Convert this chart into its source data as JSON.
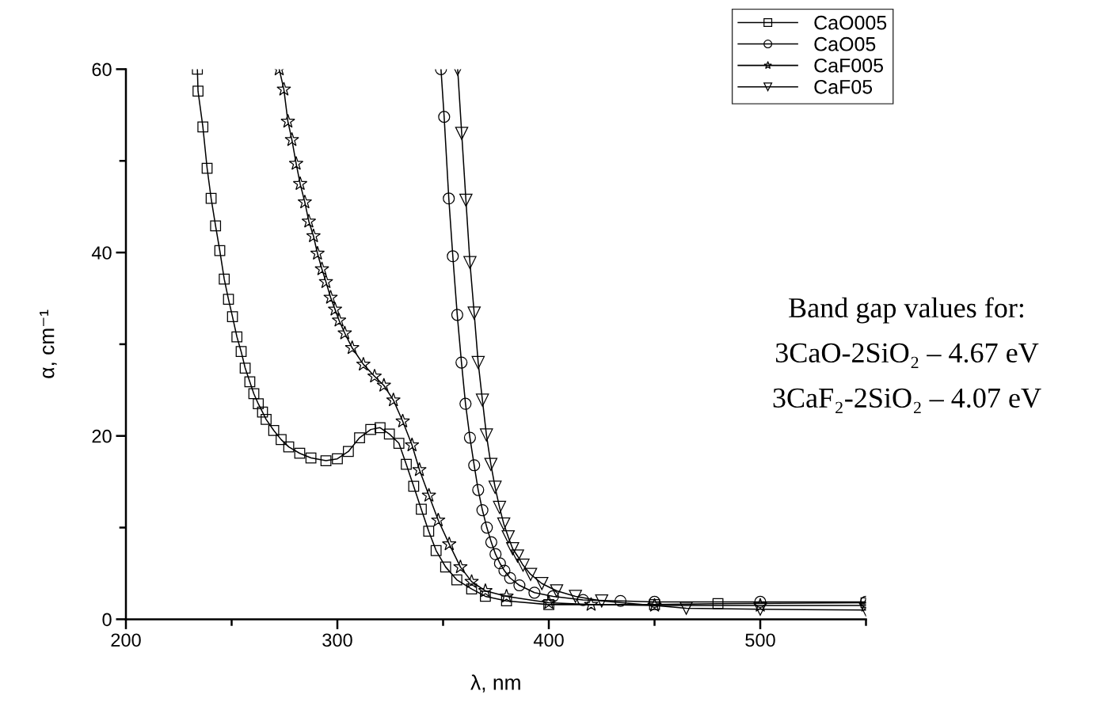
{
  "chart_data": {
    "type": "line",
    "xlabel": "λ, nm",
    "ylabel": "α, cm⁻¹",
    "xlim": [
      200,
      550
    ],
    "xticks": [
      200,
      {
        "value": 250,
        "label": null
      },
      300,
      {
        "value": 350,
        "label": null
      },
      400,
      {
        "value": 450,
        "label": null
      },
      500,
      {
        "value": 550,
        "label": null
      }
    ],
    "ylim": [
      0,
      60
    ],
    "yticks": [
      0,
      {
        "value": 10,
        "label": null
      },
      20,
      {
        "value": 30,
        "label": null
      },
      40,
      {
        "value": 50,
        "label": null
      },
      60
    ],
    "grid": false,
    "legend": "top right",
    "line_style": "solid",
    "series": [
      {
        "name": "CaO005",
        "color": "#000000",
        "marker": "square",
        "x": [
          233.8,
          234.1,
          236.4,
          238.4,
          240.3,
          242.4,
          244.4,
          246.5,
          248.5,
          250.4,
          252.5,
          254.5,
          256.4,
          258.6,
          260.5,
          262.6,
          264.6,
          266.3,
          269.9,
          273.4,
          277,
          282.2,
          287.5,
          294.6,
          300,
          305.2,
          310.5,
          315.8,
          320.2,
          324.6,
          329.1,
          332.6,
          336.1,
          339.7,
          343.2,
          346.7,
          351.2,
          356.5,
          363.5,
          370,
          380,
          400,
          450,
          480,
          550
        ],
        "values": [
          60.0,
          57.6,
          53.7,
          49.2,
          45.9,
          42.9,
          40.2,
          37.1,
          34.9,
          33.0,
          30.8,
          29.2,
          27.4,
          25.9,
          24.6,
          23.5,
          22.6,
          21.8,
          20.6,
          19.6,
          18.8,
          18.1,
          17.6,
          17.3,
          17.5,
          18.3,
          19.8,
          20.7,
          20.9,
          20.2,
          19.2,
          16.9,
          14.5,
          12.0,
          9.6,
          7.5,
          5.7,
          4.3,
          3.3,
          2.5,
          2.0,
          1.6,
          1.6,
          1.7,
          1.8
        ]
      },
      {
        "name": "CaO05",
        "color": "#000000",
        "marker": "circle",
        "x": [
          349.0,
          350.5,
          352.7,
          354.6,
          356.7,
          358.7,
          360.6,
          362.7,
          364.7,
          366.6,
          368.6,
          370.7,
          372.8,
          374.8,
          376.9,
          379,
          381.7,
          386.1,
          393.2,
          402,
          416.2,
          433.9,
          450,
          500,
          550
        ],
        "values": [
          60.0,
          54.8,
          45.9,
          39.6,
          33.2,
          28.0,
          23.5,
          19.8,
          16.8,
          14.1,
          11.9,
          10.0,
          8.4,
          7.1,
          6.1,
          5.3,
          4.5,
          3.7,
          2.9,
          2.5,
          2.1,
          2.0,
          1.9,
          1.9,
          1.9
        ]
      },
      {
        "name": "CaF005",
        "color": "#000000",
        "marker": "star",
        "x": [
          272.5,
          274.7,
          276.6,
          278.5,
          280.5,
          282.4,
          284.6,
          286.5,
          288.7,
          290.6,
          292.7,
          294.6,
          296.8,
          298.9,
          300.8,
          303.5,
          307,
          312.3,
          317.6,
          322,
          326.5,
          330.9,
          335.3,
          338.8,
          343.3,
          347.7,
          352.9,
          358.2,
          363.5,
          370,
          380,
          400,
          420,
          450,
          500,
          550
        ],
        "values": [
          60.0,
          57.8,
          54.3,
          52.3,
          49.7,
          47.5,
          45.5,
          43.4,
          41.8,
          39.9,
          38.2,
          36.8,
          35.1,
          33.8,
          32.6,
          31.2,
          29.6,
          27.8,
          26.5,
          25.5,
          23.9,
          21.6,
          19.0,
          16.3,
          13.5,
          10.8,
          8.2,
          5.7,
          4.1,
          3.1,
          2.5,
          1.8,
          1.6,
          1.5,
          1.5,
          1.5
        ]
      },
      {
        "name": "CaF05",
        "color": "#000000",
        "marker": "triangle",
        "x": [
          356.9,
          358.8,
          360.8,
          362.7,
          364.7,
          366.6,
          368.6,
          370.5,
          372.6,
          374.6,
          376.7,
          378.7,
          380.8,
          382.9,
          385.2,
          387.8,
          391.4,
          396.7,
          403.7,
          412.6,
          425,
          465,
          500,
          550
        ],
        "values": [
          60.0,
          53.0,
          45.7,
          38.9,
          33.4,
          28.0,
          23.9,
          20.1,
          16.9,
          14.4,
          12.2,
          10.4,
          9.0,
          7.7,
          6.9,
          5.9,
          4.9,
          3.9,
          3.1,
          2.5,
          2.0,
          1.2,
          1.1,
          1.0
        ]
      }
    ],
    "annotations": [
      "Band gap values for:",
      "3CaO-2SiO₂ – 4.67 eV",
      "3CaF₂-2SiO₂ – 4.07 eV"
    ]
  }
}
